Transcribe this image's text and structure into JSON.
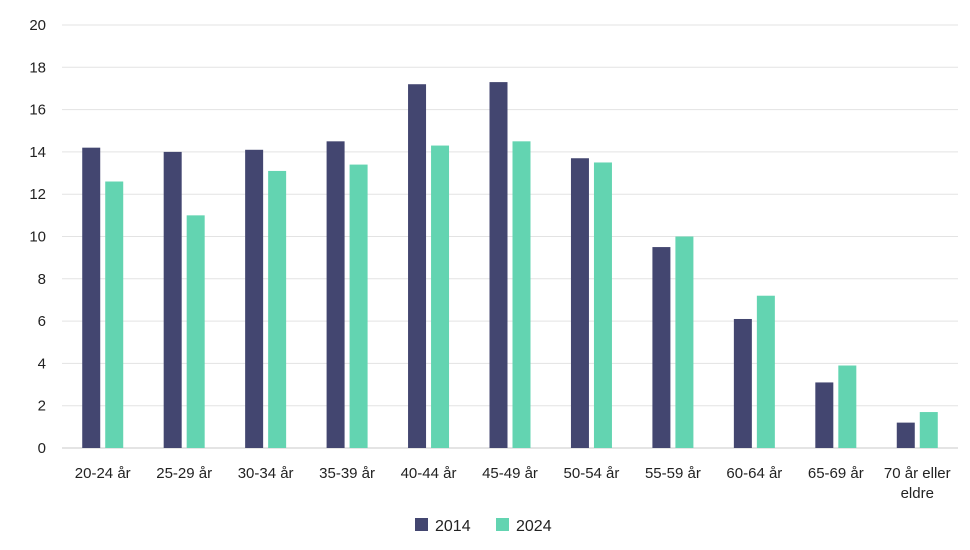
{
  "chart_data": {
    "type": "bar",
    "title": "",
    "xlabel": "",
    "ylabel": "",
    "categories": [
      [
        "20-24 år"
      ],
      [
        "25-29 år"
      ],
      [
        "30-34 år"
      ],
      [
        "35-39 år"
      ],
      [
        "40-44 år"
      ],
      [
        "45-49 år"
      ],
      [
        "50-54 år"
      ],
      [
        "55-59 år"
      ],
      [
        "60-64 år"
      ],
      [
        "65-69 år"
      ],
      [
        "70 år eller",
        "eldre"
      ]
    ],
    "series": [
      {
        "name": "2014",
        "color": "#434670",
        "values": [
          14.2,
          14.0,
          14.1,
          14.5,
          17.2,
          17.3,
          13.7,
          9.5,
          6.1,
          3.1,
          1.2
        ]
      },
      {
        "name": "2024",
        "color": "#63d4b1",
        "values": [
          12.6,
          11.0,
          13.1,
          13.4,
          14.3,
          14.5,
          13.5,
          10.0,
          7.2,
          3.9,
          1.7
        ]
      }
    ],
    "ylim": [
      0,
      20
    ],
    "yticks": [
      0,
      2,
      4,
      6,
      8,
      10,
      12,
      14,
      16,
      18,
      20
    ],
    "grid": true,
    "legend_position": "bottom"
  }
}
